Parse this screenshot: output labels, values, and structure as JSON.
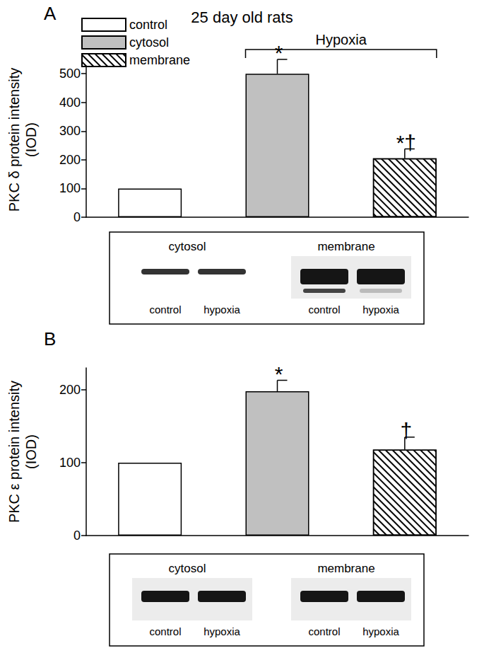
{
  "chart_data": [
    {
      "type": "bar",
      "title": "25 day old rats",
      "panel": "A",
      "y_label": "PKC δ protein intensity\n(IOD)",
      "categories": [
        null,
        null,
        null
      ],
      "series": [
        {
          "name": "control",
          "color": "#ffffff",
          "values": [
            100,
            null,
            null
          ]
        },
        {
          "name": "cytosol",
          "color": "#c0c0c0",
          "values": [
            null,
            500,
            null
          ],
          "errors": [
            null,
            50,
            null
          ],
          "annotation": "*"
        },
        {
          "name": "membrane",
          "color": "#ffffff",
          "values": [
            null,
            null,
            205
          ],
          "errors": [
            null,
            null,
            33
          ],
          "annotation": "*†"
        }
      ],
      "bracket": {
        "text": "Hypoxia",
        "series": [
          "cytosol",
          "membrane"
        ]
      },
      "ylim": [
        0,
        540
      ],
      "yticks": [
        0,
        100,
        200,
        300,
        400,
        500
      ],
      "legend": "top-left",
      "grid": false,
      "blots": [
        {
          "title": "cytosol",
          "lanes": [
            "control",
            "hypoxia"
          ]
        },
        {
          "title": "membrane",
          "lanes": [
            "control",
            "hypoxia"
          ]
        }
      ]
    },
    {
      "type": "bar",
      "panel": "B",
      "y_label": "PKC ε protein intensity\n(IOD)",
      "categories": [
        null,
        null,
        null
      ],
      "series": [
        {
          "name": "control",
          "color": "#ffffff",
          "values": [
            100,
            null,
            null
          ]
        },
        {
          "name": "cytosol",
          "color": "#c0c0c0",
          "values": [
            null,
            198,
            null
          ],
          "errors": [
            null,
            15,
            null
          ],
          "annotation": "*"
        },
        {
          "name": "membrane",
          "color": "#ffffff",
          "values": [
            null,
            null,
            118
          ],
          "errors": [
            null,
            null,
            17
          ],
          "annotation": "†"
        }
      ],
      "ylim": [
        0,
        230
      ],
      "yticks": [
        0,
        100,
        200
      ],
      "grid": false,
      "blots": [
        {
          "title": "cytosol",
          "lanes": [
            "control",
            "hypoxia"
          ]
        },
        {
          "title": "membrane",
          "lanes": [
            "control",
            "hypoxia"
          ]
        }
      ]
    }
  ]
}
